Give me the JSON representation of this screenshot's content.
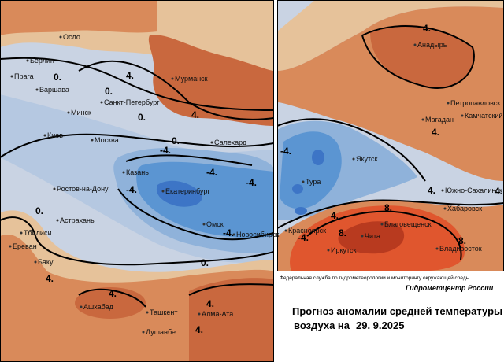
{
  "cities": [
    "Осло",
    "Берлин",
    "Прага",
    "Варшава",
    "Минск",
    "Киев",
    "Москва",
    "Мурманск",
    "Санкт-Петербург",
    "Салехард",
    "Казань",
    "Екатеринбург",
    "Ростов-на-Дону",
    "Астрахань",
    "Тбилиси",
    "Ереван",
    "Баку",
    "Омск",
    "Новосибирск",
    "Ашхабад",
    "Ташкент",
    "Алма-Ата",
    "Душанбе",
    "Анадырь",
    "Петропавловск",
    "Камчатский",
    "Магадан",
    "Якутск",
    "Тура",
    "Южно-Сахалинск",
    "Хабаровск",
    "Благовещенск",
    "Чита",
    "Красноярск",
    "Иркутск",
    "Владивосток"
  ],
  "isolines": [
    "0.",
    "4.",
    "4.",
    "0.",
    "0.",
    "0.",
    "-4.",
    "-4.",
    "-4.",
    "-4.",
    "-4.",
    "0.",
    "0.",
    "4.",
    "4.",
    "4.",
    "4.",
    "4.",
    "-4.",
    "-4.",
    "4.",
    "4.",
    "4.",
    "8.",
    "8.",
    "8.",
    "4."
  ],
  "footer": {
    "agency": "Федеральная служба по гидрометеорологии и мониторингу окружающей среды",
    "center": "Гидрометцентр России",
    "title": "Прогноз аномалии средней температуры",
    "subtitle": "воздуха на",
    "date": "29. 9.2025"
  }
}
